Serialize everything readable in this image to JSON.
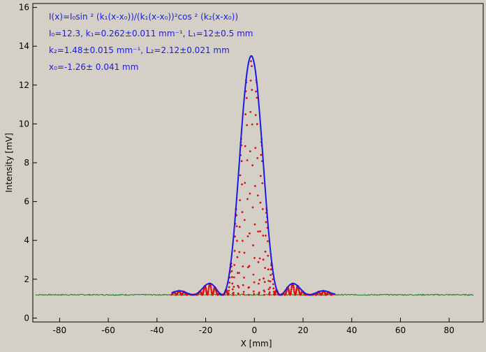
{
  "chart_data": {
    "type": "line",
    "xlabel": "X [mm]",
    "ylabel": "Intensity [mV]",
    "xlim": [
      -91,
      94
    ],
    "ylim": [
      -0.2,
      16.2
    ],
    "xticks": [
      -80,
      -60,
      -40,
      -20,
      0,
      20,
      40,
      60,
      80
    ],
    "yticks": [
      0,
      2,
      4,
      6,
      8,
      10,
      12,
      14,
      16
    ],
    "grid": false,
    "annotation_lines": [
      "I(x)=I₀sin ² (k₁(x-x₀))/(k₁(x-x₀))²cos ² (k₂(x-x₀))",
      "I₀=12.3,  k₁=0.262±0.011 mm⁻¹,   L₁=12±0.5 mm",
      "k₂=1.48±0.015 mm⁻¹,   L₂=2.12±0.021 mm",
      "x₀=-1.26±  0.041 mm"
    ],
    "fit": {
      "I0": 12.3,
      "k1": 0.262,
      "k2": 1.48,
      "x0": -1.26,
      "baseline": 1.2,
      "x_range": [
        -34,
        33
      ]
    },
    "series": [
      {
        "role": "background",
        "color": "#1a7a1a",
        "x_range": [
          -90,
          90
        ],
        "level": 1.2
      },
      {
        "role": "measured",
        "color": "#dd1111",
        "x_range": [
          -34,
          33
        ]
      },
      {
        "role": "fit",
        "color": "#1a1ae6",
        "x_range": [
          -34,
          33
        ]
      }
    ]
  }
}
